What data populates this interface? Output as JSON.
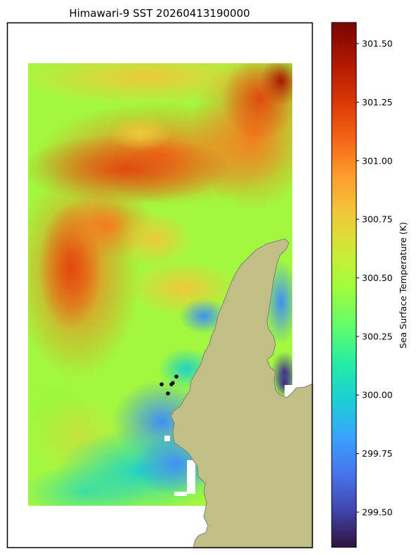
{
  "title": "Himawari-9 SST 20260413190000",
  "colorbar": {
    "label": "Sea Surface Temperature (K)",
    "vmin": 299.35,
    "vmax": 301.59,
    "ticks": [
      {
        "value": 301.5,
        "label": "301.50"
      },
      {
        "value": 301.25,
        "label": "301.25"
      },
      {
        "value": 301.0,
        "label": "301.00"
      },
      {
        "value": 300.75,
        "label": "300.75"
      },
      {
        "value": 300.5,
        "label": "300.50"
      },
      {
        "value": 300.25,
        "label": "300.25"
      },
      {
        "value": 300.0,
        "label": "300.00"
      },
      {
        "value": 299.75,
        "label": "299.75"
      },
      {
        "value": 299.5,
        "label": "299.50"
      }
    ],
    "colormap": "turbo"
  },
  "map": {
    "land_color": "#bfbf86",
    "coast_color": "#808080",
    "station_marker_count": 5
  },
  "colors": {
    "frame": "#000000",
    "background": "#ffffff"
  }
}
